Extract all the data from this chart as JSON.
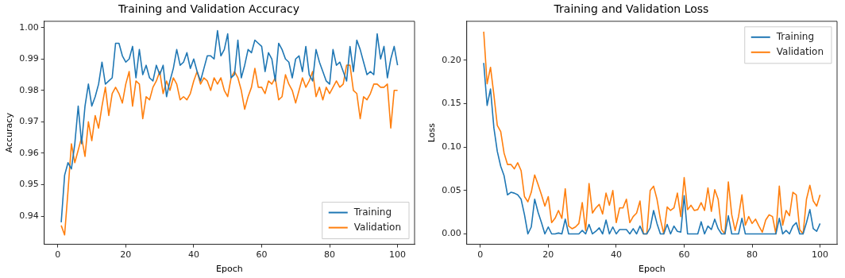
{
  "chart_data": [
    {
      "type": "line",
      "title": "Training and Validation Accuracy",
      "xlabel": "Epoch",
      "ylabel": "Accuracy",
      "x": [
        1,
        2,
        3,
        4,
        5,
        6,
        7,
        8,
        9,
        10,
        11,
        12,
        13,
        14,
        15,
        16,
        17,
        18,
        19,
        20,
        21,
        22,
        23,
        24,
        25,
        26,
        27,
        28,
        29,
        30,
        31,
        32,
        33,
        34,
        35,
        36,
        37,
        38,
        39,
        40,
        41,
        42,
        43,
        44,
        45,
        46,
        47,
        48,
        49,
        50,
        51,
        52,
        53,
        54,
        55,
        56,
        57,
        58,
        59,
        60,
        61,
        62,
        63,
        64,
        65,
        66,
        67,
        68,
        69,
        70,
        71,
        72,
        73,
        74,
        75,
        76,
        77,
        78,
        79,
        80,
        81,
        82,
        83,
        84,
        85,
        86,
        87,
        88,
        89,
        90,
        91,
        92,
        93,
        94,
        95,
        96,
        97,
        98,
        99,
        100
      ],
      "series": [
        {
          "name": "Training",
          "color": "#1f77b4",
          "values": [
            0.938,
            0.953,
            0.957,
            0.955,
            0.963,
            0.975,
            0.963,
            0.975,
            0.982,
            0.975,
            0.978,
            0.982,
            0.989,
            0.982,
            0.983,
            0.984,
            0.995,
            0.995,
            0.991,
            0.989,
            0.99,
            0.994,
            0.984,
            0.993,
            0.985,
            0.988,
            0.984,
            0.983,
            0.988,
            0.985,
            0.988,
            0.978,
            0.983,
            0.987,
            0.993,
            0.988,
            0.989,
            0.992,
            0.987,
            0.99,
            0.986,
            0.983,
            0.987,
            0.991,
            0.991,
            0.99,
            0.999,
            0.991,
            0.993,
            0.998,
            0.984,
            0.985,
            0.996,
            0.984,
            0.988,
            0.993,
            0.992,
            0.996,
            0.995,
            0.994,
            0.986,
            0.992,
            0.99,
            0.983,
            0.995,
            0.993,
            0.99,
            0.989,
            0.984,
            0.99,
            0.991,
            0.986,
            0.994,
            0.985,
            0.983,
            0.993,
            0.989,
            0.986,
            0.983,
            0.982,
            0.993,
            0.988,
            0.989,
            0.986,
            0.983,
            0.994,
            0.986,
            0.996,
            0.993,
            0.989,
            0.985,
            0.986,
            0.985,
            0.998,
            0.99,
            0.994,
            0.984,
            0.99,
            0.994,
            0.988
          ]
        },
        {
          "name": "Validation",
          "color": "#ff7f0e",
          "values": [
            0.937,
            0.934,
            0.948,
            0.963,
            0.957,
            0.961,
            0.965,
            0.959,
            0.97,
            0.964,
            0.972,
            0.968,
            0.975,
            0.981,
            0.972,
            0.979,
            0.981,
            0.979,
            0.976,
            0.982,
            0.986,
            0.975,
            0.983,
            0.982,
            0.971,
            0.978,
            0.977,
            0.981,
            0.983,
            0.986,
            0.979,
            0.983,
            0.98,
            0.984,
            0.982,
            0.977,
            0.978,
            0.977,
            0.979,
            0.983,
            0.986,
            0.982,
            0.984,
            0.983,
            0.98,
            0.984,
            0.982,
            0.984,
            0.98,
            0.978,
            0.984,
            0.986,
            0.984,
            0.98,
            0.974,
            0.978,
            0.981,
            0.987,
            0.981,
            0.981,
            0.979,
            0.983,
            0.982,
            0.984,
            0.977,
            0.978,
            0.985,
            0.982,
            0.98,
            0.976,
            0.98,
            0.984,
            0.981,
            0.983,
            0.986,
            0.978,
            0.981,
            0.977,
            0.981,
            0.979,
            0.981,
            0.983,
            0.981,
            0.982,
            0.988,
            0.988,
            0.98,
            0.979,
            0.971,
            0.978,
            0.977,
            0.979,
            0.982,
            0.982,
            0.981,
            0.981,
            0.982,
            0.968,
            0.98,
            0.98
          ]
        }
      ],
      "xlim": [
        -4,
        105
      ],
      "xticks": [
        0,
        20,
        40,
        60,
        80,
        100
      ],
      "ylim": [
        0.931,
        1.002
      ],
      "yticks": [
        {
          "value": 0.94,
          "label": "0.94"
        },
        {
          "value": 0.95,
          "label": "0.95"
        },
        {
          "value": 0.96,
          "label": "0.96"
        },
        {
          "value": 0.97,
          "label": "0.97"
        },
        {
          "value": 0.98,
          "label": "0.98"
        },
        {
          "value": 0.99,
          "label": "0.99"
        },
        {
          "value": 1.0,
          "label": "1.00"
        }
      ],
      "legend": "bottom right",
      "marker": "none",
      "line_style": "solid",
      "grid": false
    },
    {
      "type": "line",
      "title": "Training and Validation Loss",
      "xlabel": "Epoch",
      "ylabel": "Loss",
      "x": [
        1,
        2,
        3,
        4,
        5,
        6,
        7,
        8,
        9,
        10,
        11,
        12,
        13,
        14,
        15,
        16,
        17,
        18,
        19,
        20,
        21,
        22,
        23,
        24,
        25,
        26,
        27,
        28,
        29,
        30,
        31,
        32,
        33,
        34,
        35,
        36,
        37,
        38,
        39,
        40,
        41,
        42,
        43,
        44,
        45,
        46,
        47,
        48,
        49,
        50,
        51,
        52,
        53,
        54,
        55,
        56,
        57,
        58,
        59,
        60,
        61,
        62,
        63,
        64,
        65,
        66,
        67,
        68,
        69,
        70,
        71,
        72,
        73,
        74,
        75,
        76,
        77,
        78,
        79,
        80,
        81,
        82,
        83,
        84,
        85,
        86,
        87,
        88,
        89,
        90,
        91,
        92,
        93,
        94,
        95,
        96,
        97,
        98,
        99,
        100
      ],
      "series": [
        {
          "name": "Training",
          "color": "#1f77b4",
          "values": [
            0.197,
            0.148,
            0.167,
            0.122,
            0.095,
            0.078,
            0.067,
            0.045,
            0.048,
            0.047,
            0.045,
            0.04,
            0.022,
            0.0,
            0.008,
            0.04,
            0.025,
            0.013,
            0.0,
            0.008,
            0.0,
            0.0,
            0.001,
            0.0,
            0.017,
            0.0,
            0.0,
            0.0,
            0.0,
            0.004,
            0.0,
            0.011,
            0.0,
            0.003,
            0.007,
            0.0,
            0.016,
            0.0,
            0.008,
            0.0,
            0.005,
            0.005,
            0.005,
            0.0,
            0.006,
            0.0,
            0.009,
            0.0,
            0.0,
            0.007,
            0.027,
            0.012,
            0.0,
            0.0,
            0.011,
            0.0,
            0.009,
            0.003,
            0.002,
            0.044,
            0.0,
            0.0,
            0.0,
            0.0,
            0.014,
            0.0,
            0.009,
            0.005,
            0.017,
            0.006,
            0.0,
            0.0,
            0.021,
            0.0,
            0.0,
            0.0,
            0.018,
            0.0,
            0.0,
            0.0,
            0.0,
            0.0,
            0.0,
            0.0,
            0.0,
            0.0,
            0.0,
            0.018,
            0.0,
            0.004,
            0.0,
            0.009,
            0.013,
            0.0,
            0.0,
            0.013,
            0.028,
            0.006,
            0.003,
            0.012
          ]
        },
        {
          "name": "Validation",
          "color": "#ff7f0e",
          "values": [
            0.233,
            0.173,
            0.192,
            0.16,
            0.125,
            0.118,
            0.093,
            0.08,
            0.08,
            0.075,
            0.082,
            0.073,
            0.043,
            0.037,
            0.048,
            0.068,
            0.057,
            0.045,
            0.032,
            0.043,
            0.013,
            0.018,
            0.027,
            0.018,
            0.052,
            0.009,
            0.006,
            0.008,
            0.012,
            0.036,
            0.004,
            0.058,
            0.024,
            0.03,
            0.034,
            0.023,
            0.047,
            0.033,
            0.05,
            0.013,
            0.03,
            0.03,
            0.04,
            0.013,
            0.02,
            0.024,
            0.038,
            0.0,
            0.0,
            0.05,
            0.055,
            0.04,
            0.017,
            0.0,
            0.031,
            0.027,
            0.03,
            0.047,
            0.02,
            0.065,
            0.028,
            0.033,
            0.027,
            0.028,
            0.036,
            0.027,
            0.053,
            0.026,
            0.051,
            0.04,
            0.005,
            0.0,
            0.06,
            0.022,
            0.004,
            0.02,
            0.045,
            0.01,
            0.02,
            0.012,
            0.017,
            0.009,
            0.002,
            0.016,
            0.022,
            0.02,
            0.0,
            0.055,
            0.01,
            0.027,
            0.021,
            0.048,
            0.045,
            0.005,
            0.0,
            0.04,
            0.056,
            0.038,
            0.032,
            0.045
          ]
        }
      ],
      "xlim": [
        -4,
        105
      ],
      "xticks": [
        0,
        20,
        40,
        60,
        80,
        100
      ],
      "ylim": [
        -0.012,
        0.245
      ],
      "yticks": [
        {
          "value": 0.0,
          "label": "0.00"
        },
        {
          "value": 0.05,
          "label": "0.05"
        },
        {
          "value": 0.1,
          "label": "0.10"
        },
        {
          "value": 0.15,
          "label": "0.15"
        },
        {
          "value": 0.2,
          "label": "0.20"
        }
      ],
      "legend": "top right",
      "marker": "none",
      "line_style": "solid",
      "grid": false
    }
  ]
}
